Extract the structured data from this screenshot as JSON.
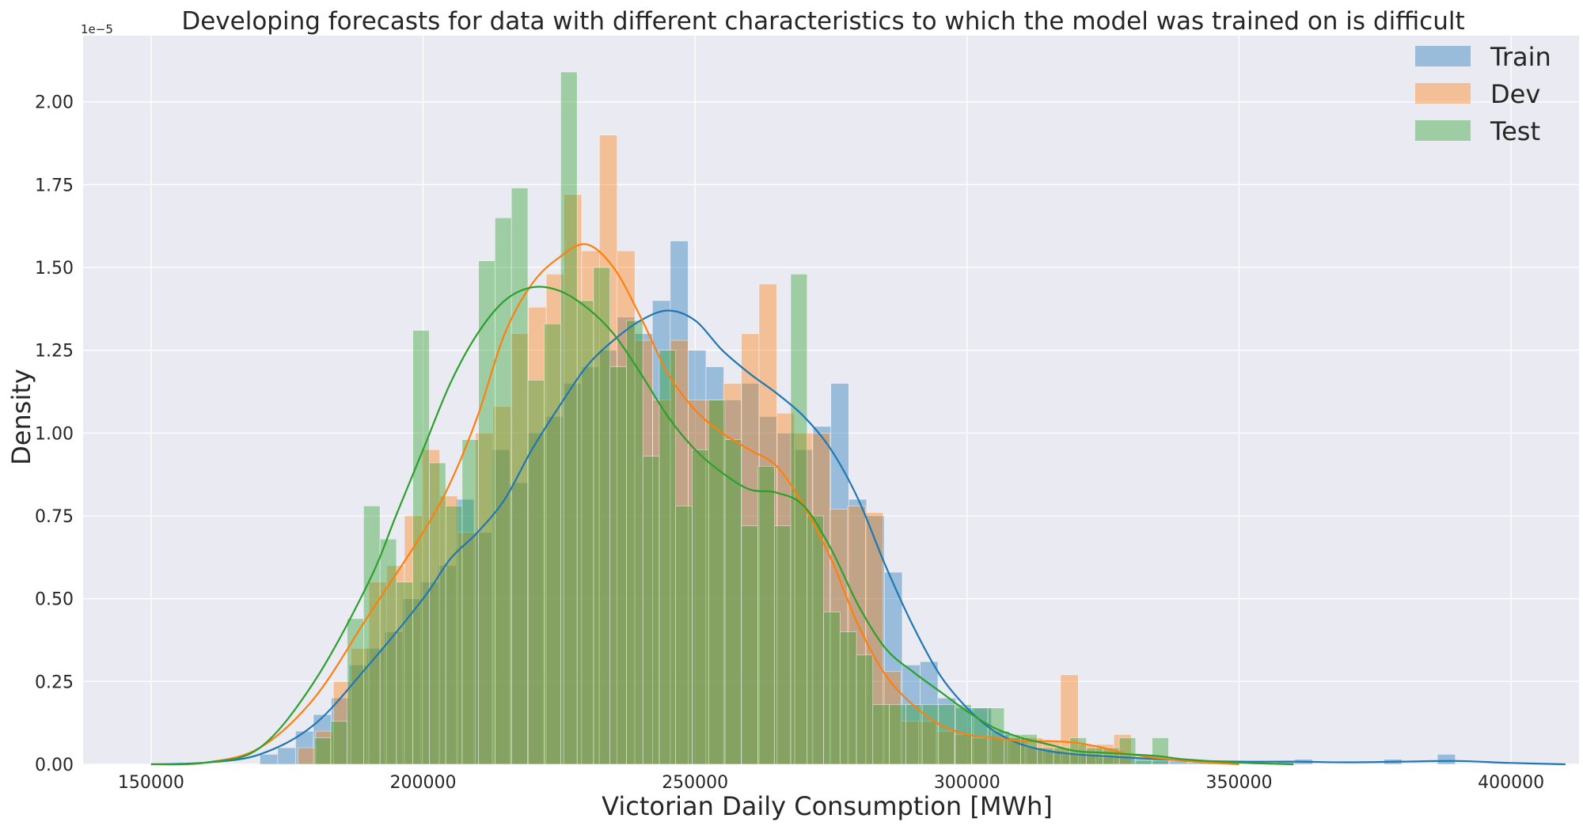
{
  "chart_data": {
    "type": "bar",
    "title": "Developing forecasts for data with different characteristics to which the model was trained on is difficult",
    "xlabel": "Victorian Daily Consumption [MWh]",
    "ylabel": "Density",
    "y_offset_text": "1e−5",
    "xlim": [
      137500,
      412500
    ],
    "ylim": [
      0,
      2.2
    ],
    "x_ticks": [
      150000,
      200000,
      250000,
      300000,
      350000,
      400000
    ],
    "x_tick_labels": [
      "150000",
      "200000",
      "250000",
      "300000",
      "350000",
      "400000"
    ],
    "y_ticks": [
      0,
      0.25,
      0.5,
      0.75,
      1.0,
      1.25,
      1.5,
      1.75,
      2.0
    ],
    "y_tick_labels": [
      "0.00",
      "0.25",
      "0.50",
      "0.75",
      "1.00",
      "1.25",
      "1.50",
      "1.75",
      "2.00"
    ],
    "grid": true,
    "legend_position": "top-right",
    "series": [
      {
        "name": "Train",
        "color": "#1f77b4",
        "bin_edges": [
          170000,
          173280,
          176560,
          179840,
          183120,
          186400,
          189680,
          192960,
          196240,
          199520,
          202800,
          206080,
          209360,
          212640,
          215920,
          219200,
          222480,
          225760,
          229040,
          232320,
          235600,
          238880,
          242160,
          245440,
          248720,
          252000,
          255280,
          258560,
          261840,
          265120,
          268400,
          271680,
          274960,
          278240,
          281520,
          284800,
          288080,
          291360,
          294640,
          297920,
          301200,
          304480,
          307760,
          311040,
          314320,
          317600,
          320880,
          324160,
          327440,
          330720,
          334000,
          337280,
          340560,
          343840,
          347120,
          350400,
          353680,
          356960,
          360240,
          363520,
          366800,
          370080,
          373360,
          376640,
          379920,
          383200,
          386480,
          389760
        ],
        "density": [
          0.03,
          0.05,
          0.1,
          0.15,
          0.2,
          0.3,
          0.35,
          0.4,
          0.5,
          0.55,
          0.6,
          0.8,
          0.7,
          0.95,
          0.85,
          1.0,
          1.05,
          1.15,
          1.2,
          1.25,
          1.35,
          1.3,
          1.4,
          1.58,
          1.25,
          1.2,
          1.1,
          1.15,
          1.05,
          1.0,
          0.95,
          1.02,
          1.15,
          0.8,
          0.75,
          0.58,
          0.3,
          0.31,
          0.2,
          0.17,
          0.17,
          0.1,
          0.08,
          0.05,
          0.04,
          0.03,
          0.03,
          0.02,
          0.02,
          0.01,
          0.01,
          0.01,
          0.005,
          0.005,
          0.0,
          0.0,
          0.0,
          0.01,
          0.015,
          0.0,
          0.0,
          0.0,
          0.0,
          0.015,
          0.0,
          0.0,
          0.03
        ],
        "kde": [
          [
            150000,
            0.0
          ],
          [
            160000,
            0.005
          ],
          [
            170000,
            0.03
          ],
          [
            180000,
            0.12
          ],
          [
            190000,
            0.3
          ],
          [
            200000,
            0.5
          ],
          [
            205000,
            0.62
          ],
          [
            210000,
            0.7
          ],
          [
            215000,
            0.8
          ],
          [
            220000,
            0.95
          ],
          [
            225000,
            1.08
          ],
          [
            230000,
            1.2
          ],
          [
            235000,
            1.28
          ],
          [
            240000,
            1.34
          ],
          [
            245000,
            1.37
          ],
          [
            250000,
            1.34
          ],
          [
            255000,
            1.25
          ],
          [
            260000,
            1.18
          ],
          [
            265000,
            1.12
          ],
          [
            270000,
            1.05
          ],
          [
            275000,
            0.95
          ],
          [
            280000,
            0.8
          ],
          [
            285000,
            0.6
          ],
          [
            290000,
            0.42
          ],
          [
            295000,
            0.27
          ],
          [
            300000,
            0.17
          ],
          [
            305000,
            0.1
          ],
          [
            310000,
            0.06
          ],
          [
            315000,
            0.04
          ],
          [
            320000,
            0.03
          ],
          [
            330000,
            0.02
          ],
          [
            340000,
            0.012
          ],
          [
            350000,
            0.008
          ],
          [
            360000,
            0.008
          ],
          [
            370000,
            0.006
          ],
          [
            380000,
            0.008
          ],
          [
            390000,
            0.01
          ],
          [
            400000,
            0.004
          ],
          [
            410000,
            0.0
          ]
        ]
      },
      {
        "name": "Dev",
        "color": "#ff7f0e",
        "bin_edges": [
          177000,
          180260,
          183520,
          186780,
          190040,
          193300,
          196560,
          199820,
          203080,
          206340,
          209600,
          212860,
          216120,
          219380,
          222640,
          225900,
          229160,
          232420,
          235680,
          238940,
          242200,
          245460,
          248720,
          251980,
          255240,
          258500,
          261760,
          265020,
          268280,
          271540,
          274800,
          278060,
          281320,
          284580,
          287840,
          291100,
          294360,
          297620,
          300880,
          304140,
          307400,
          310660,
          313920,
          317180,
          320440,
          323700,
          326960,
          330220
        ],
        "density": [
          0.05,
          0.1,
          0.25,
          0.35,
          0.55,
          0.6,
          0.75,
          0.95,
          0.81,
          0.7,
          1.0,
          1.08,
          1.3,
          1.38,
          1.48,
          1.72,
          1.55,
          1.9,
          1.55,
          1.28,
          1.1,
          1.28,
          1.1,
          1.1,
          1.15,
          1.3,
          1.45,
          1.06,
          1.0,
          1.0,
          0.77,
          0.78,
          0.76,
          0.28,
          0.13,
          0.13,
          0.1,
          0.09,
          0.08,
          0.08,
          0.08,
          0.08,
          0.07,
          0.27,
          0.06,
          0.06,
          0.09
        ],
        "kde": [
          [
            150000,
            0.0
          ],
          [
            160000,
            0.005
          ],
          [
            170000,
            0.05
          ],
          [
            180000,
            0.2
          ],
          [
            190000,
            0.45
          ],
          [
            200000,
            0.7
          ],
          [
            205000,
            0.85
          ],
          [
            210000,
            1.05
          ],
          [
            215000,
            1.3
          ],
          [
            220000,
            1.45
          ],
          [
            225000,
            1.53
          ],
          [
            230000,
            1.57
          ],
          [
            235000,
            1.5
          ],
          [
            240000,
            1.35
          ],
          [
            245000,
            1.18
          ],
          [
            250000,
            1.07
          ],
          [
            255000,
            1.0
          ],
          [
            260000,
            0.95
          ],
          [
            265000,
            0.9
          ],
          [
            270000,
            0.78
          ],
          [
            275000,
            0.62
          ],
          [
            280000,
            0.42
          ],
          [
            285000,
            0.27
          ],
          [
            290000,
            0.18
          ],
          [
            295000,
            0.12
          ],
          [
            300000,
            0.09
          ],
          [
            305000,
            0.08
          ],
          [
            310000,
            0.07
          ],
          [
            315000,
            0.07
          ],
          [
            320000,
            0.065
          ],
          [
            325000,
            0.05
          ],
          [
            330000,
            0.03
          ],
          [
            340000,
            0.01
          ],
          [
            350000,
            0.0
          ]
        ]
      },
      {
        "name": "Test",
        "color": "#2ca02c",
        "bin_edges": [
          180000,
          183020,
          186040,
          189060,
          192080,
          195100,
          198120,
          201140,
          204160,
          207180,
          210200,
          213220,
          216240,
          219260,
          222280,
          225300,
          228320,
          231340,
          234360,
          237380,
          240400,
          243420,
          246440,
          249460,
          252480,
          255500,
          258520,
          261540,
          264560,
          267580,
          270600,
          273620,
          276640,
          279660,
          282680,
          285700,
          288720,
          291740,
          294760,
          297780,
          300800,
          303820,
          306840,
          309860,
          312880,
          315900,
          318920,
          321940,
          324960,
          327980,
          331000,
          334020,
          337040
        ],
        "density": [
          0.08,
          0.13,
          0.44,
          0.78,
          0.68,
          0.55,
          1.31,
          0.91,
          0.78,
          0.98,
          1.52,
          1.65,
          1.74,
          1.16,
          1.33,
          2.09,
          1.4,
          1.5,
          1.2,
          1.34,
          0.93,
          1.25,
          0.78,
          0.95,
          1.1,
          0.98,
          0.72,
          0.9,
          0.72,
          1.48,
          0.75,
          0.46,
          0.4,
          0.33,
          0.18,
          0.18,
          0.18,
          0.18,
          0.18,
          0.18,
          0.17,
          0.17,
          0.09,
          0.09,
          0.05,
          0.05,
          0.08,
          0.05,
          0.05,
          0.08,
          0.02,
          0.08
        ],
        "kde": [
          [
            150000,
            0.0
          ],
          [
            160000,
            0.005
          ],
          [
            170000,
            0.05
          ],
          [
            180000,
            0.25
          ],
          [
            190000,
            0.55
          ],
          [
            195000,
            0.75
          ],
          [
            200000,
            0.95
          ],
          [
            205000,
            1.15
          ],
          [
            210000,
            1.3
          ],
          [
            215000,
            1.4
          ],
          [
            220000,
            1.44
          ],
          [
            225000,
            1.43
          ],
          [
            230000,
            1.38
          ],
          [
            235000,
            1.3
          ],
          [
            240000,
            1.18
          ],
          [
            245000,
            1.05
          ],
          [
            250000,
            0.95
          ],
          [
            255000,
            0.88
          ],
          [
            260000,
            0.83
          ],
          [
            265000,
            0.82
          ],
          [
            270000,
            0.78
          ],
          [
            275000,
            0.65
          ],
          [
            280000,
            0.48
          ],
          [
            285000,
            0.35
          ],
          [
            290000,
            0.28
          ],
          [
            295000,
            0.22
          ],
          [
            300000,
            0.16
          ],
          [
            305000,
            0.11
          ],
          [
            310000,
            0.08
          ],
          [
            315000,
            0.06
          ],
          [
            320000,
            0.04
          ],
          [
            325000,
            0.035
          ],
          [
            330000,
            0.03
          ],
          [
            335000,
            0.025
          ],
          [
            340000,
            0.015
          ],
          [
            350000,
            0.005
          ],
          [
            360000,
            0.0
          ]
        ]
      }
    ]
  }
}
